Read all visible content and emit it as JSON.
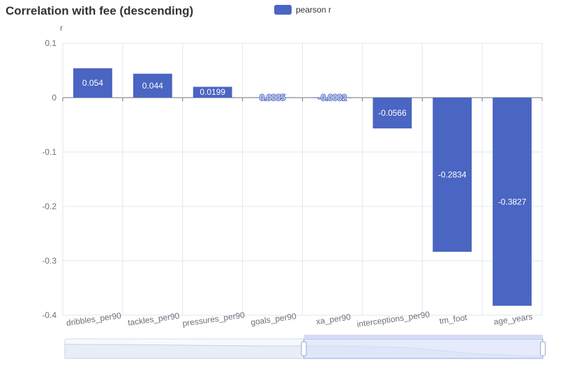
{
  "chart_data": {
    "type": "bar",
    "title": "Correlation with fee (descending)",
    "ylabel": "r",
    "xlabel": "",
    "categories": [
      "dribbles_per90",
      "tackles_per90",
      "pressures_per90",
      "goals_per90",
      "xa_per90",
      "interceptions_per90",
      "tm_foot",
      "age_years"
    ],
    "series": [
      {
        "name": "pearson r",
        "values": [
          0.054,
          0.044,
          0.0199,
          0.0005,
          -0.0002,
          -0.0566,
          -0.2834,
          -0.3827
        ],
        "labels": [
          "0.054",
          "0.044",
          "0.0199",
          "0.0005",
          "-0.0002",
          "-0.0566",
          "-0.2834",
          "-0.3827"
        ]
      }
    ],
    "ylim": [
      -0.4,
      0.1
    ],
    "yticks": [
      0.1,
      0,
      -0.1,
      -0.2,
      -0.3,
      -0.4
    ],
    "ytick_labels": [
      "0.1",
      "0",
      "-0.1",
      "-0.2",
      "-0.3",
      "-0.4"
    ],
    "grid": true,
    "legend_position": "top-center",
    "colors": {
      "bar": "#4a65c2",
      "grid": "#e0e6f1",
      "axis": "#6e7079",
      "zoom_fill": "#d8e1fb"
    },
    "data_zoom": {
      "visible": true,
      "range_start": 0.5,
      "range_end": 1.0
    }
  }
}
